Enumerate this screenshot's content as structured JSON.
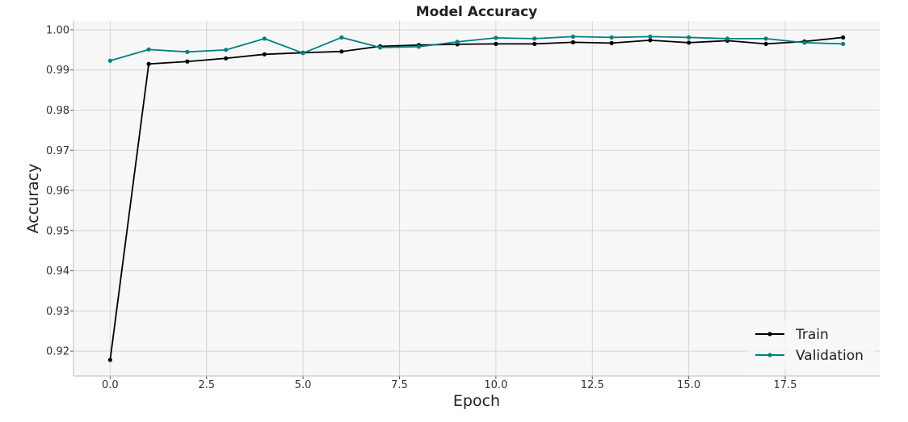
{
  "chart_data": {
    "type": "line",
    "title": "Model Accuracy",
    "xlabel": "Epoch",
    "ylabel": "Accuracy",
    "xlim": [
      -0.95,
      19.95
    ],
    "ylim": [
      0.9138,
      1.0022
    ],
    "xticks": [
      0.0,
      2.5,
      5.0,
      7.5,
      10.0,
      12.5,
      15.0,
      17.5
    ],
    "xtick_labels": [
      "0.0",
      "2.5",
      "5.0",
      "7.5",
      "10.0",
      "12.5",
      "15.0",
      "17.5"
    ],
    "yticks": [
      0.92,
      0.93,
      0.94,
      0.95,
      0.96,
      0.97,
      0.98,
      0.99,
      1.0
    ],
    "ytick_labels": [
      "0.92",
      "0.93",
      "0.94",
      "0.95",
      "0.96",
      "0.97",
      "0.98",
      "0.99",
      "1.00"
    ],
    "grid": true,
    "legend": "lower-right",
    "x": [
      0,
      1,
      2,
      3,
      4,
      5,
      6,
      7,
      8,
      9,
      10,
      11,
      12,
      13,
      14,
      15,
      16,
      17,
      18,
      19
    ],
    "series": [
      {
        "name": "Train",
        "color": "#000000",
        "values": [
          0.9178,
          0.9915,
          0.9921,
          0.9929,
          0.9939,
          0.9943,
          0.9946,
          0.9959,
          0.9962,
          0.9964,
          0.9965,
          0.9965,
          0.9969,
          0.9967,
          0.9974,
          0.9968,
          0.9973,
          0.9965,
          0.9971,
          0.9981
        ]
      },
      {
        "name": "Validation",
        "color": "#008080",
        "values": [
          0.9923,
          0.9951,
          0.9945,
          0.995,
          0.9978,
          0.9942,
          0.9981,
          0.9956,
          0.9958,
          0.997,
          0.998,
          0.9978,
          0.9983,
          0.9981,
          0.9983,
          0.9981,
          0.9978,
          0.9978,
          0.9968,
          0.9965
        ]
      }
    ]
  }
}
